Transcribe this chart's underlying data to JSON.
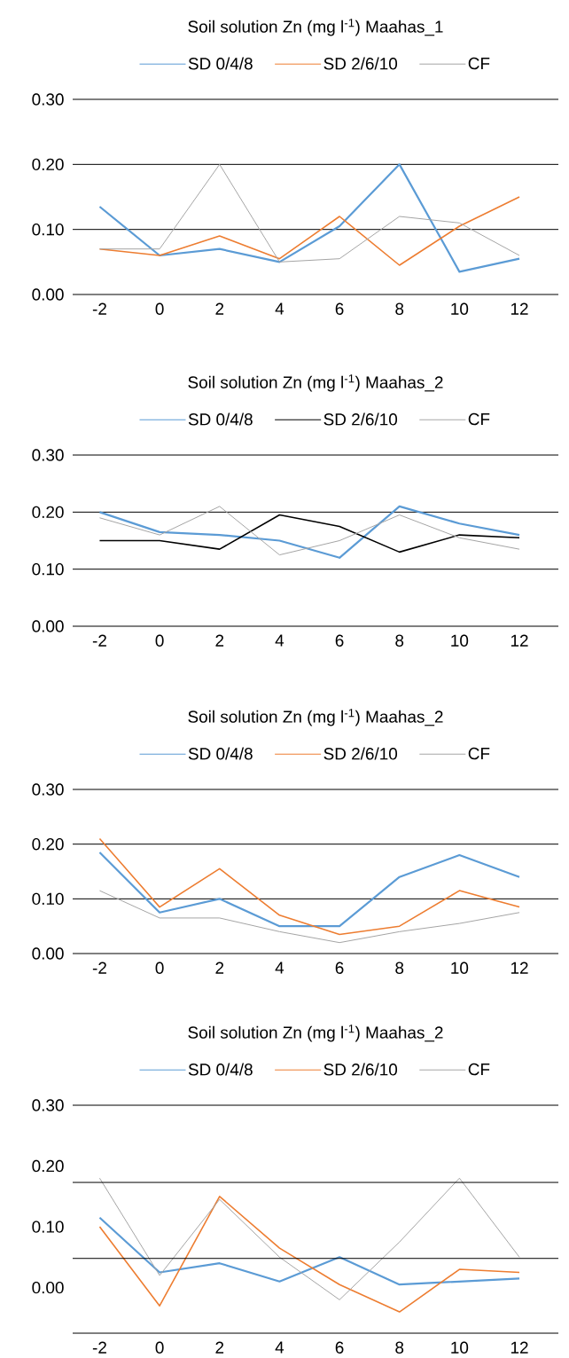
{
  "chart_data": [
    {
      "type": "line",
      "title": "Soil solution Zn (mg l$^{-1}$) Maahas_1",
      "categories": [
        "-2",
        "0",
        "2",
        "4",
        "6",
        "8",
        "10",
        "12"
      ],
      "ylim": [
        0,
        0.3
      ],
      "yticks": [
        {
          "value": 0,
          "label": "0.00"
        },
        {
          "value": 0.1,
          "label": "0.10"
        },
        {
          "value": 0.2,
          "label": "0.20"
        },
        {
          "value": 0.3,
          "label": "0.30"
        }
      ],
      "grid": "y",
      "legend": "top",
      "series": [
        {
          "name": "SD 0/4/8",
          "color": "#5b9bd5",
          "values": [
            0.135,
            0.06,
            0.07,
            0.05,
            0.105,
            0.2,
            0.035,
            0.055
          ]
        },
        {
          "name": "SD 2/6/10",
          "color": "#ed7d31",
          "values": [
            0.07,
            0.06,
            0.09,
            0.055,
            0.12,
            0.045,
            0.105,
            0.15
          ]
        },
        {
          "name": "CF",
          "color": "#a5a5a5",
          "values": [
            0.07,
            0.07,
            0.2,
            0.05,
            0.055,
            0.12,
            0.11,
            0.06
          ]
        }
      ]
    },
    {
      "type": "line",
      "title": "Soil solution Zn (mg l$^{-1}$) Maahas_2",
      "categories": [
        "-2",
        "0",
        "2",
        "4",
        "6",
        "8",
        "10",
        "12"
      ],
      "ylim": [
        0,
        0.3
      ],
      "yticks": [
        {
          "value": 0,
          "label": "0.00"
        },
        {
          "value": 0.1,
          "label": "0.10"
        },
        {
          "value": 0.2,
          "label": "0.20"
        },
        {
          "value": 0.3,
          "label": "0.30"
        }
      ],
      "grid": "y",
      "legend": "top",
      "series": [
        {
          "name": "SD 0/4/8",
          "color": "#5b9bd5",
          "values": [
            0.2,
            0.165,
            0.16,
            0.15,
            0.12,
            0.21,
            0.18,
            0.16
          ]
        },
        {
          "name": "SD 2/6/10",
          "color": "#000000",
          "values": [
            0.15,
            0.15,
            0.135,
            0.195,
            0.175,
            0.13,
            0.16,
            0.155
          ]
        },
        {
          "name": "CF",
          "color": "#a5a5a5",
          "values": [
            0.19,
            0.16,
            0.21,
            0.125,
            0.15,
            0.195,
            0.155,
            0.135
          ]
        }
      ]
    },
    {
      "type": "line",
      "title": "Soil solution Zn (mg l$^{-1}$) Maahas_2",
      "categories": [
        "-2",
        "0",
        "2",
        "4",
        "6",
        "8",
        "10",
        "12"
      ],
      "ylim": [
        0,
        0.3
      ],
      "yticks": [
        {
          "value": 0,
          "label": "0.00"
        },
        {
          "value": 0.1,
          "label": "0.10"
        },
        {
          "value": 0.2,
          "label": "0.20"
        },
        {
          "value": 0.3,
          "label": "0.30"
        }
      ],
      "grid": "y",
      "legend": "top",
      "series": [
        {
          "name": "SD 0/4/8",
          "color": "#5b9bd5",
          "values": [
            0.185,
            0.075,
            0.1,
            0.05,
            0.05,
            0.14,
            0.18,
            0.14
          ]
        },
        {
          "name": "SD 2/6/10",
          "color": "#ed7d31",
          "values": [
            0.21,
            0.085,
            0.155,
            0.07,
            0.035,
            0.05,
            0.115,
            0.085
          ]
        },
        {
          "name": "CF",
          "color": "#a5a5a5",
          "values": [
            0.115,
            0.065,
            0.065,
            0.04,
            0.02,
            0.04,
            0.055,
            0.075
          ]
        }
      ]
    },
    {
      "type": "line",
      "title": "Soil solution Zn (mg l$^{-1}$) Maahas_2",
      "categories": [
        "-2",
        "0",
        "2",
        "4",
        "6",
        "8",
        "10",
        "12"
      ],
      "ylim": [
        -0.075,
        0.3
      ],
      "yticks": [
        {
          "value": 0,
          "label": "0.00"
        },
        {
          "value": 0.1,
          "label": "0.10"
        },
        {
          "value": 0.2,
          "label": "0.20"
        },
        {
          "value": 0.3,
          "label": "0.30"
        }
      ],
      "legend": "top",
      "ref_lines": [
        {
          "axis": "y",
          "value": 0.3,
          "color": "#000000"
        },
        {
          "axis": "y",
          "value": 0.173,
          "color": "#000000"
        },
        {
          "axis": "y",
          "value": 0.048,
          "color": "#000000"
        },
        {
          "axis": "y",
          "value": -0.075,
          "color": "#000000"
        }
      ],
      "series": [
        {
          "name": "SD 0/4/8",
          "color": "#5b9bd5",
          "values": [
            0.115,
            0.025,
            0.04,
            0.01,
            0.05,
            0.005,
            0.01,
            0.015
          ]
        },
        {
          "name": "SD 2/6/10",
          "color": "#ed7d31",
          "values": [
            0.1,
            -0.03,
            0.15,
            0.065,
            0.005,
            -0.04,
            0.03,
            0.025
          ]
        },
        {
          "name": "CF",
          "color": "#a5a5a5",
          "values": [
            0.18,
            0.02,
            0.145,
            0.05,
            -0.02,
            0.075,
            0.18,
            0.05
          ]
        }
      ]
    }
  ]
}
